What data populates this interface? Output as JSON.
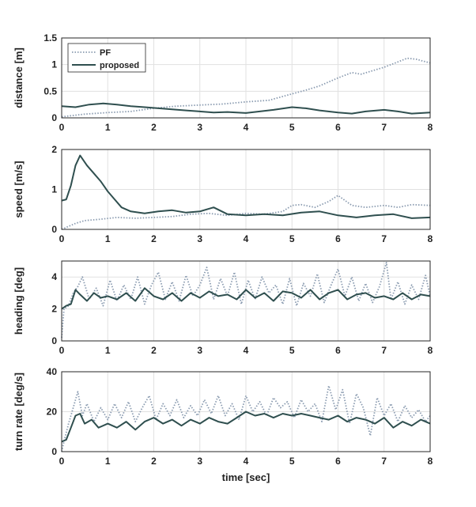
{
  "chart_data": [
    {
      "type": "line",
      "ylabel": "distance [m]",
      "xlim": [
        0,
        8
      ],
      "ylim": [
        0,
        1.5
      ],
      "yticks": [
        0,
        0.5,
        1,
        1.5
      ],
      "ytick_labels": [
        "0",
        "0.5",
        "1",
        "1.5"
      ],
      "grid": true,
      "legend": "top-left",
      "series": [
        {
          "name": "PF",
          "style": "dotted",
          "color": "#8A9BB0",
          "x": [
            0,
            0.2,
            0.5,
            1,
            1.5,
            2,
            2.5,
            3,
            3.5,
            4,
            4.5,
            5,
            5.3,
            5.6,
            6,
            6.3,
            6.5,
            7,
            7.3,
            7.5,
            7.7,
            8
          ],
          "y": [
            0.02,
            0.04,
            0.07,
            0.1,
            0.12,
            0.18,
            0.22,
            0.24,
            0.26,
            0.3,
            0.33,
            0.45,
            0.52,
            0.6,
            0.75,
            0.85,
            0.82,
            0.95,
            1.05,
            1.12,
            1.1,
            1.03
          ]
        },
        {
          "name": "proposed",
          "style": "solid",
          "color": "#2F4F4F",
          "x": [
            0,
            0.3,
            0.6,
            0.9,
            1.2,
            1.5,
            1.8,
            2.1,
            2.4,
            2.7,
            3,
            3.3,
            3.6,
            4,
            4.3,
            4.6,
            5,
            5.3,
            5.6,
            6,
            6.3,
            6.6,
            7,
            7.3,
            7.6,
            8
          ],
          "y": [
            0.22,
            0.2,
            0.25,
            0.27,
            0.25,
            0.22,
            0.2,
            0.18,
            0.16,
            0.14,
            0.12,
            0.1,
            0.11,
            0.09,
            0.12,
            0.15,
            0.2,
            0.18,
            0.14,
            0.1,
            0.08,
            0.12,
            0.15,
            0.12,
            0.08,
            0.1
          ]
        }
      ]
    },
    {
      "type": "line",
      "ylabel": "speed [m/s]",
      "xlim": [
        0,
        8
      ],
      "ylim": [
        0,
        2
      ],
      "yticks": [
        0,
        1,
        2
      ],
      "ytick_labels": [
        "0",
        "1",
        "2"
      ],
      "grid": true,
      "series": [
        {
          "name": "PF",
          "style": "dotted",
          "color": "#8A9BB0",
          "x": [
            0,
            0.1,
            0.3,
            0.5,
            0.8,
            1.2,
            1.6,
            2.0,
            2.4,
            2.8,
            3.2,
            3.6,
            4,
            4.4,
            4.8,
            5.0,
            5.2,
            5.5,
            5.8,
            6.0,
            6.3,
            6.6,
            7.0,
            7.3,
            7.6,
            8
          ],
          "y": [
            0.0,
            0.05,
            0.15,
            0.22,
            0.25,
            0.3,
            0.28,
            0.3,
            0.32,
            0.38,
            0.4,
            0.35,
            0.4,
            0.38,
            0.45,
            0.6,
            0.62,
            0.55,
            0.7,
            0.85,
            0.6,
            0.55,
            0.6,
            0.55,
            0.62,
            0.6
          ]
        },
        {
          "name": "proposed",
          "style": "solid",
          "color": "#2F4F4F",
          "x": [
            0,
            0.1,
            0.2,
            0.3,
            0.4,
            0.55,
            0.7,
            0.85,
            1.0,
            1.15,
            1.3,
            1.5,
            1.8,
            2.1,
            2.4,
            2.7,
            3.0,
            3.3,
            3.6,
            4,
            4.4,
            4.8,
            5.2,
            5.6,
            6,
            6.4,
            6.8,
            7.2,
            7.6,
            8
          ],
          "y": [
            0.72,
            0.75,
            1.1,
            1.6,
            1.85,
            1.6,
            1.4,
            1.2,
            0.95,
            0.75,
            0.55,
            0.45,
            0.4,
            0.45,
            0.48,
            0.42,
            0.45,
            0.55,
            0.38,
            0.35,
            0.38,
            0.35,
            0.42,
            0.45,
            0.35,
            0.3,
            0.35,
            0.38,
            0.28,
            0.3
          ]
        }
      ]
    },
    {
      "type": "line",
      "ylabel": "heading [deg]",
      "xlim": [
        0,
        8
      ],
      "ylim": [
        0,
        5
      ],
      "yticks": [
        0,
        2,
        4
      ],
      "ytick_labels": [
        "0",
        "2",
        "4"
      ],
      "grid": true,
      "series": [
        {
          "name": "PF",
          "style": "dotted",
          "color": "#8A9BB0",
          "x": [
            0,
            0.05,
            0.15,
            0.25,
            0.35,
            0.45,
            0.6,
            0.75,
            0.9,
            1.05,
            1.2,
            1.35,
            1.5,
            1.65,
            1.8,
            1.95,
            2.1,
            2.25,
            2.4,
            2.55,
            2.7,
            2.85,
            3.0,
            3.15,
            3.3,
            3.45,
            3.6,
            3.75,
            3.9,
            4.05,
            4.2,
            4.35,
            4.5,
            4.65,
            4.8,
            4.95,
            5.1,
            5.25,
            5.4,
            5.55,
            5.7,
            5.85,
            6.0,
            6.15,
            6.3,
            6.45,
            6.6,
            6.75,
            6.9,
            7.05,
            7.15,
            7.3,
            7.45,
            7.6,
            7.75,
            7.9,
            8
          ],
          "y": [
            0.2,
            2.0,
            2.2,
            3.0,
            3.4,
            4.0,
            2.6,
            3.3,
            2.2,
            3.8,
            2.5,
            3.5,
            2.6,
            4.0,
            2.3,
            3.5,
            4.3,
            2.6,
            3.7,
            2.5,
            4.1,
            2.8,
            3.5,
            4.6,
            2.6,
            3.9,
            2.8,
            4.3,
            2.3,
            3.8,
            2.6,
            4.0,
            3.0,
            3.5,
            2.3,
            3.9,
            2.2,
            3.6,
            2.8,
            4.2,
            2.4,
            3.5,
            4.5,
            2.8,
            4.0,
            2.5,
            3.6,
            2.4,
            3.4,
            4.9,
            2.6,
            3.7,
            2.3,
            3.5,
            2.6,
            4.1,
            2.8
          ]
        },
        {
          "name": "proposed",
          "style": "solid",
          "color": "#2F4F4F",
          "x": [
            0,
            0.1,
            0.2,
            0.3,
            0.4,
            0.55,
            0.7,
            0.85,
            1.0,
            1.2,
            1.4,
            1.6,
            1.8,
            2.0,
            2.2,
            2.4,
            2.6,
            2.8,
            3.0,
            3.2,
            3.4,
            3.6,
            3.8,
            4.0,
            4.2,
            4.4,
            4.6,
            4.8,
            5.0,
            5.2,
            5.4,
            5.6,
            5.8,
            6.0,
            6.2,
            6.4,
            6.6,
            6.8,
            7.0,
            7.2,
            7.4,
            7.6,
            7.8,
            8
          ],
          "y": [
            2.0,
            2.2,
            2.3,
            3.2,
            2.9,
            2.5,
            3.0,
            2.7,
            2.8,
            2.6,
            3.0,
            2.5,
            3.3,
            2.8,
            2.6,
            3.0,
            2.5,
            3.0,
            2.7,
            3.1,
            2.8,
            2.9,
            2.6,
            3.2,
            2.7,
            3.0,
            2.5,
            3.1,
            3.0,
            2.7,
            3.2,
            2.6,
            3.0,
            3.2,
            2.6,
            2.9,
            3.0,
            2.7,
            2.8,
            2.6,
            3.0,
            2.6,
            2.9,
            2.8
          ]
        }
      ]
    },
    {
      "type": "line",
      "ylabel": "turn rate [deg/s]",
      "xlabel": "time [sec]",
      "xlim": [
        0,
        8
      ],
      "ylim": [
        0,
        40
      ],
      "yticks": [
        0,
        20,
        40
      ],
      "ytick_labels": [
        "0",
        "20",
        "40"
      ],
      "grid": true,
      "series": [
        {
          "name": "PF",
          "style": "dotted",
          "color": "#8A9BB0",
          "x": [
            0,
            0.05,
            0.15,
            0.25,
            0.35,
            0.45,
            0.55,
            0.7,
            0.85,
            1.0,
            1.15,
            1.3,
            1.45,
            1.6,
            1.75,
            1.9,
            2.05,
            2.2,
            2.35,
            2.5,
            2.65,
            2.8,
            2.95,
            3.1,
            3.25,
            3.4,
            3.55,
            3.7,
            3.85,
            4.0,
            4.15,
            4.3,
            4.45,
            4.6,
            4.75,
            4.9,
            5.05,
            5.2,
            5.35,
            5.5,
            5.65,
            5.8,
            5.95,
            6.1,
            6.25,
            6.4,
            6.55,
            6.7,
            6.85,
            7.0,
            7.15,
            7.3,
            7.45,
            7.6,
            7.75,
            7.9,
            8
          ],
          "y": [
            0.0,
            5,
            14,
            22,
            30,
            18,
            24,
            15,
            22,
            16,
            24,
            17,
            25,
            15,
            22,
            28,
            16,
            24,
            18,
            26,
            17,
            23,
            18,
            26,
            19,
            28,
            18,
            24,
            16,
            28,
            20,
            25,
            18,
            27,
            22,
            25,
            17,
            26,
            20,
            24,
            15,
            33,
            21,
            31,
            14,
            29,
            22,
            8,
            27,
            18,
            24,
            15,
            23,
            17,
            21,
            15,
            18
          ]
        },
        {
          "name": "proposed",
          "style": "solid",
          "color": "#2F4F4F",
          "x": [
            0,
            0.1,
            0.2,
            0.3,
            0.4,
            0.5,
            0.65,
            0.8,
            1.0,
            1.2,
            1.4,
            1.6,
            1.8,
            2.0,
            2.2,
            2.4,
            2.6,
            2.8,
            3.0,
            3.2,
            3.4,
            3.6,
            3.8,
            4.0,
            4.2,
            4.4,
            4.6,
            4.8,
            5.0,
            5.2,
            5.4,
            5.6,
            5.8,
            6.0,
            6.2,
            6.4,
            6.6,
            6.8,
            7.0,
            7.2,
            7.4,
            7.6,
            7.8,
            8
          ],
          "y": [
            5,
            6,
            12,
            18,
            19,
            14,
            16,
            12,
            14,
            12,
            15,
            11,
            15,
            17,
            14,
            16,
            13,
            16,
            14,
            17,
            15,
            14,
            17,
            20,
            18,
            19,
            17,
            19,
            18,
            19,
            18,
            17,
            16,
            18,
            15,
            17,
            16,
            14,
            17,
            12,
            15,
            13,
            16,
            14
          ]
        }
      ]
    }
  ],
  "legend": {
    "items": [
      {
        "label": "PF",
        "style": "dotted",
        "color": "#8A9BB0"
      },
      {
        "label": "proposed",
        "style": "solid",
        "color": "#2F4F4F"
      }
    ]
  },
  "xticks": [
    0,
    1,
    2,
    3,
    4,
    5,
    6,
    7,
    8
  ],
  "xtick_labels": [
    "0",
    "1",
    "2",
    "3",
    "4",
    "5",
    "6",
    "7",
    "8"
  ]
}
